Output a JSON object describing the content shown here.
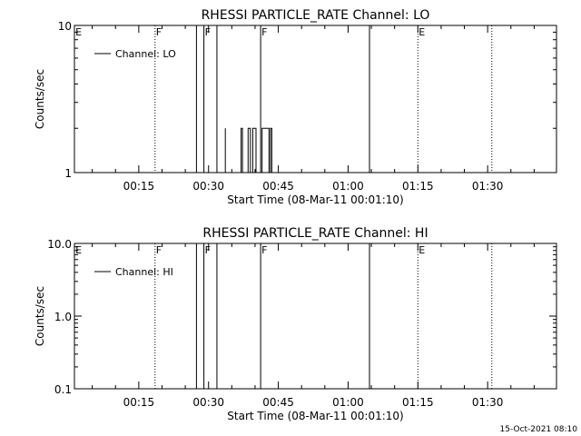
{
  "chart_data": [
    {
      "type": "line",
      "title": "RHESSI PARTICLE_RATE Channel: LO",
      "xlabel": "Start Time (08-Mar-11 00:01:10)",
      "ylabel": "Counts/sec",
      "scale_y": "log",
      "ylim": [
        1,
        10
      ],
      "y_ticks": [
        "1",
        "10"
      ],
      "x_range_minutes": [
        1.17,
        104.8
      ],
      "x_ticks": [
        {
          "label": "00:15",
          "minute": 15
        },
        {
          "label": "00:30",
          "minute": 30
        },
        {
          "label": "00:45",
          "minute": 45
        },
        {
          "label": "01:00",
          "minute": 60
        },
        {
          "label": "01:15",
          "minute": 75
        },
        {
          "label": "01:30",
          "minute": 90
        }
      ],
      "legend": {
        "label": "Channel: LO",
        "position": "top-left"
      },
      "markers": [
        {
          "label": "E",
          "minute": 1.2,
          "style": "none"
        },
        {
          "label": "F",
          "minute": 18.5,
          "style": "dotted"
        },
        {
          "label": "F",
          "minute": 29.0,
          "style": "solid"
        },
        {
          "label": "",
          "minute": 27.4,
          "style": "solid"
        },
        {
          "label": "",
          "minute": 31.8,
          "style": "solid"
        },
        {
          "label": "F",
          "minute": 41.2,
          "style": "solid"
        },
        {
          "label": "",
          "minute": 64.6,
          "style": "solid"
        },
        {
          "label": "E",
          "minute": 75.0,
          "style": "dotted"
        },
        {
          "label": "",
          "minute": 90.9,
          "style": "dotted"
        }
      ],
      "series": [
        {
          "segments": [
            [
              [
                33.6,
                2.0
              ],
              [
                33.6,
                1.0
              ]
            ],
            [
              [
                37.0,
                1.0
              ],
              [
                37.0,
                2.0
              ],
              [
                37.3,
                2.0
              ],
              [
                37.3,
                1.0
              ]
            ],
            [
              [
                38.5,
                1.0
              ],
              [
                38.5,
                2.0
              ],
              [
                39.0,
                2.0
              ],
              [
                39.0,
                1.0
              ],
              [
                39.5,
                1.0
              ],
              [
                39.5,
                2.0
              ],
              [
                40.2,
                2.0
              ],
              [
                40.2,
                1.0
              ]
            ],
            [
              [
                41.5,
                1.0
              ],
              [
                41.5,
                2.0
              ],
              [
                43.0,
                2.0
              ],
              [
                43.0,
                1.0
              ],
              [
                43.3,
                1.0
              ],
              [
                43.3,
                2.0
              ],
              [
                43.6,
                2.0
              ],
              [
                43.6,
                1.0
              ]
            ]
          ]
        }
      ]
    },
    {
      "type": "line",
      "title": "RHESSI PARTICLE_RATE Channel: HI",
      "xlabel": "Start Time (08-Mar-11 00:01:10)",
      "ylabel": "Counts/sec",
      "scale_y": "log",
      "ylim": [
        0.1,
        10.0
      ],
      "y_ticks": [
        "0.1",
        "1.0",
        "10.0"
      ],
      "x_range_minutes": [
        1.17,
        104.8
      ],
      "x_ticks": [
        {
          "label": "00:15",
          "minute": 15
        },
        {
          "label": "00:30",
          "minute": 30
        },
        {
          "label": "00:45",
          "minute": 45
        },
        {
          "label": "01:00",
          "minute": 60
        },
        {
          "label": "01:15",
          "minute": 75
        },
        {
          "label": "01:30",
          "minute": 90
        }
      ],
      "legend": {
        "label": "Channel: HI",
        "position": "top-left"
      },
      "markers": [
        {
          "label": "E",
          "minute": 1.2,
          "style": "none"
        },
        {
          "label": "F",
          "minute": 18.5,
          "style": "dotted"
        },
        {
          "label": "F",
          "minute": 29.0,
          "style": "solid"
        },
        {
          "label": "",
          "minute": 27.4,
          "style": "solid"
        },
        {
          "label": "",
          "minute": 31.8,
          "style": "solid"
        },
        {
          "label": "F",
          "minute": 41.2,
          "style": "solid"
        },
        {
          "label": "",
          "minute": 64.6,
          "style": "solid"
        },
        {
          "label": "E",
          "minute": 75.0,
          "style": "dotted"
        },
        {
          "label": "",
          "minute": 90.9,
          "style": "dotted"
        }
      ],
      "series": []
    }
  ],
  "footer": {
    "timestamp": "15-Oct-2021 08:10"
  }
}
